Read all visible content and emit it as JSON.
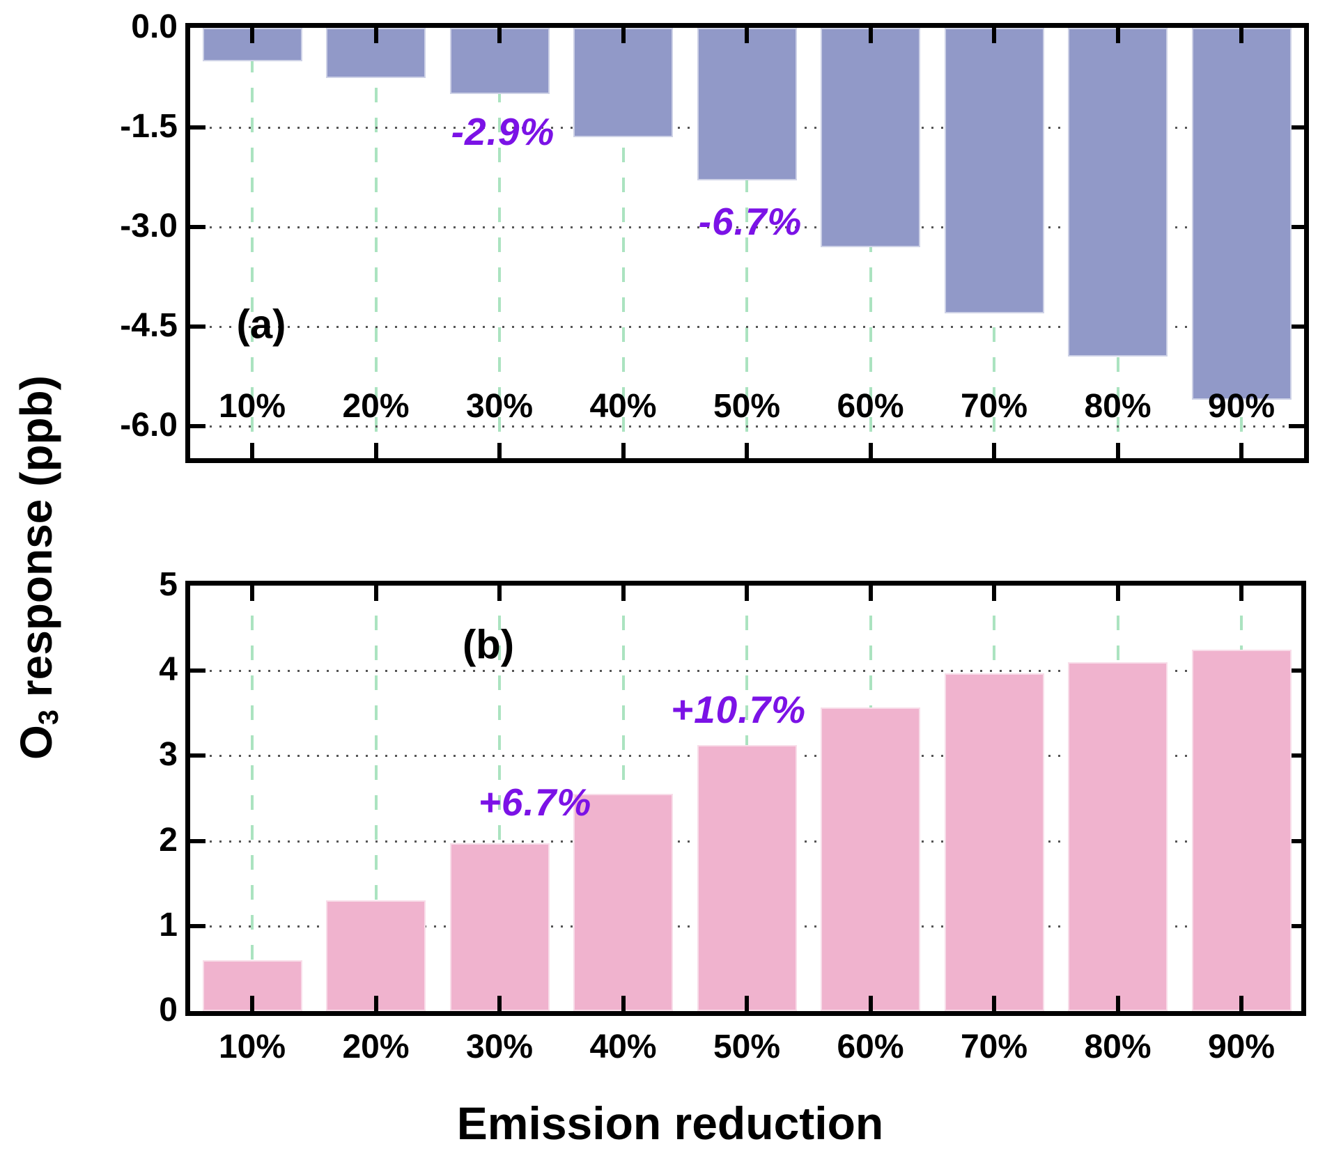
{
  "figure": {
    "xlabel": "Emission reduction",
    "ylabel": {
      "prefix": "O",
      "sub": "3",
      "rest": " response (ppb)"
    }
  },
  "colors": {
    "bar_a": "#9199C8",
    "bar_a_edge": "rgba(255,255,255,0.55)",
    "bar_b": "#F0B3CE",
    "annotation": "#7B12E6",
    "vgrid_green": "#ABE3C0",
    "hgrid_dot": "#555555",
    "axis": "#000000"
  },
  "chart_data": [
    {
      "id": "a",
      "type": "bar",
      "panel_label": "(a)",
      "categories": [
        "10%",
        "20%",
        "30%",
        "40%",
        "50%",
        "60%",
        "70%",
        "80%",
        "90%"
      ],
      "values": [
        -0.5,
        -0.75,
        -1.0,
        -1.65,
        -2.3,
        -3.3,
        -4.3,
        -4.95,
        -5.6
      ],
      "bar_color": "#9199C8",
      "ylim": [
        -6.48,
        0
      ],
      "yticks": [
        0.0,
        -1.5,
        -3.0,
        -4.5,
        -6.0
      ],
      "ytick_labels": [
        "0.0",
        "-1.5",
        "-3.0",
        "-4.5",
        "-6.0"
      ],
      "grid": true,
      "legend": "none",
      "annotations": [
        {
          "text": "-2.9%",
          "near_category": "30%"
        },
        {
          "text": "-6.7%",
          "near_category": "50%"
        }
      ]
    },
    {
      "id": "b",
      "type": "bar",
      "panel_label": "(b)",
      "categories": [
        "10%",
        "20%",
        "30%",
        "40%",
        "50%",
        "60%",
        "70%",
        "80%",
        "90%"
      ],
      "values": [
        0.6,
        1.3,
        1.97,
        2.55,
        3.13,
        3.57,
        3.97,
        4.1,
        4.25
      ],
      "bar_color": "#F0B3CE",
      "ylim": [
        0,
        5
      ],
      "yticks": [
        5,
        4,
        3,
        2,
        1,
        0
      ],
      "ytick_labels": [
        "5",
        "4",
        "3",
        "2",
        "1",
        "0"
      ],
      "grid": true,
      "legend": "none",
      "annotations": [
        {
          "text": "+6.7%",
          "near_category": "40%"
        },
        {
          "text": "+10.7%",
          "near_category": "50%"
        }
      ]
    }
  ]
}
